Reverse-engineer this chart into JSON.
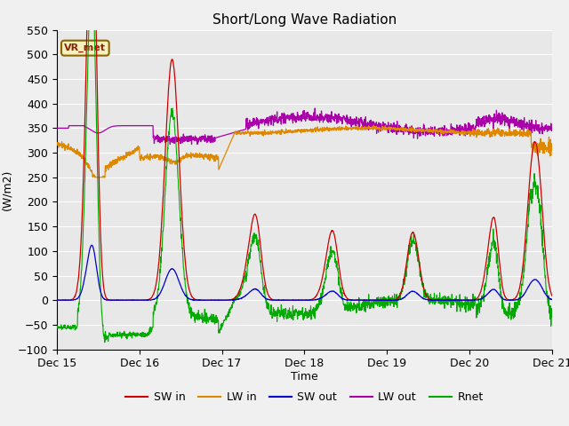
{
  "title": "Short/Long Wave Radiation",
  "ylabel": "(W/m2)",
  "xlabel": "Time",
  "ylim": [
    -100,
    550
  ],
  "yticks": [
    -100,
    -50,
    0,
    50,
    100,
    150,
    200,
    250,
    300,
    350,
    400,
    450,
    500,
    550
  ],
  "xlim": [
    0,
    144
  ],
  "xtick_positions": [
    0,
    24,
    48,
    72,
    96,
    120,
    144
  ],
  "xtick_labels": [
    "Dec 15",
    "Dec 16",
    "Dec 17",
    "Dec 18",
    "Dec 19",
    "Dec 20",
    "Dec 21"
  ],
  "colors": {
    "SW_in": "#cc0000",
    "LW_in": "#dd8800",
    "SW_out": "#0000cc",
    "LW_out": "#aa00aa",
    "Rnet": "#00aa00"
  },
  "annotation_text": "VR_met",
  "figsize": [
    6.4,
    4.8
  ],
  "dpi": 100
}
